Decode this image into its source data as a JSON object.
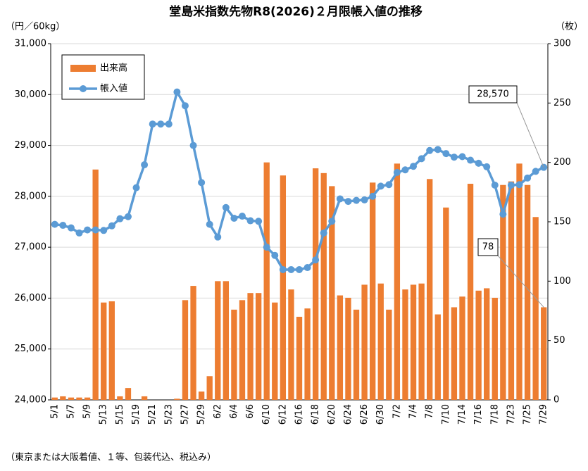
{
  "chart_data": {
    "type": "bar-line",
    "title": "堂島米指数先物R8(2026)２月限帳入値の推移",
    "y_label": "（円／60kg）",
    "y2_label": "（枚）",
    "footnote": "（東京または大阪着値、１等、包装代込、税込み）",
    "categories": [
      "5/1",
      null,
      "5/7",
      null,
      "5/9",
      null,
      "5/13",
      null,
      "5/15",
      null,
      "5/19",
      null,
      "5/21",
      null,
      "5/23",
      null,
      "5/27",
      null,
      "5/29",
      null,
      "6/2",
      null,
      "6/4",
      null,
      "6/6",
      null,
      "6/10",
      null,
      "6/12",
      null,
      "6/16",
      null,
      "6/18",
      null,
      "6/20",
      null,
      "6/24",
      null,
      "6/26",
      null,
      "6/30",
      null,
      "7/2",
      null,
      "7/4",
      null,
      "7/8",
      null,
      "7/10",
      null,
      "7/14",
      null,
      "7/16",
      null,
      "7/18",
      null,
      "7/23",
      null,
      "7/25",
      null,
      "7/29"
    ],
    "series": [
      {
        "name": "出来高",
        "kind": "bar",
        "axis": "y2",
        "color": "#ed7d31",
        "values": [
          2,
          3,
          2,
          2,
          2,
          194,
          82,
          83,
          3,
          10,
          0,
          3,
          0,
          0,
          0,
          1,
          84,
          96,
          7,
          20,
          100,
          100,
          76,
          84,
          90,
          90,
          200,
          82,
          189,
          93,
          70,
          77,
          195,
          191,
          180,
          88,
          86,
          76,
          97,
          183,
          98,
          76,
          199,
          93,
          97,
          98,
          186,
          72,
          162,
          78,
          87,
          182,
          92,
          94,
          86,
          181,
          184,
          199,
          181,
          154,
          78
        ]
      },
      {
        "name": "帳入値",
        "kind": "line",
        "axis": "y",
        "color": "#5b9bd5",
        "values": [
          27450,
          27430,
          27380,
          27280,
          27340,
          27340,
          27330,
          27420,
          27560,
          27600,
          28170,
          28620,
          29420,
          29420,
          29420,
          30050,
          29780,
          29000,
          28270,
          27450,
          27200,
          27780,
          27570,
          27610,
          27520,
          27510,
          27000,
          26840,
          26560,
          26560,
          26560,
          26600,
          26750,
          27280,
          27510,
          27950,
          27900,
          27920,
          27930,
          28000,
          28200,
          28230,
          28470,
          28520,
          28590,
          28740,
          28900,
          28920,
          28840,
          28770,
          28780,
          28710,
          28650,
          28580,
          28220,
          27650,
          28220,
          28230,
          28360,
          28490,
          28570
        ]
      }
    ],
    "annotations": [
      "28,570",
      "78"
    ],
    "ylim": [
      24000,
      31000
    ],
    "yticks": [
      {
        "value": 24000,
        "label": "24,000"
      },
      {
        "value": 25000,
        "label": "25,000"
      },
      {
        "value": 26000,
        "label": "26,000"
      },
      {
        "value": 27000,
        "label": "27,000"
      },
      {
        "value": 28000,
        "label": "28,000"
      },
      {
        "value": 29000,
        "label": "29,000"
      },
      {
        "value": 30000,
        "label": "30,000"
      },
      {
        "value": 31000,
        "label": "31,000"
      }
    ],
    "y2lim": [
      0,
      300
    ],
    "y2ticks": [
      0,
      50,
      100,
      150,
      200,
      250,
      300
    ],
    "grid": true,
    "legend": "upper-left"
  }
}
